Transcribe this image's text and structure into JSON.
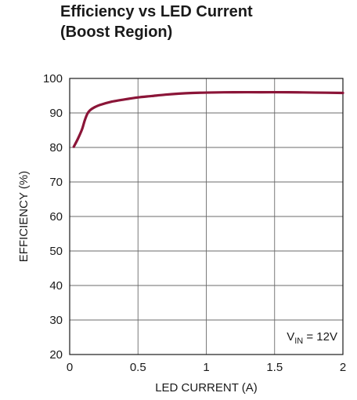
{
  "chart_data": {
    "type": "line",
    "title": [
      "Efficiency vs LED Current",
      "(Boost Region)"
    ],
    "xlabel": "LED CURRENT (A)",
    "ylabel": "EFFICIENCY (%)",
    "xlim": [
      0,
      2
    ],
    "ylim": [
      20,
      100
    ],
    "x_ticks": [
      0,
      0.5,
      1,
      1.5,
      2
    ],
    "x_tick_labels": [
      "0",
      "0.5",
      "1",
      "1.5",
      "2"
    ],
    "y_ticks": [
      20,
      30,
      40,
      50,
      60,
      70,
      80,
      90,
      100
    ],
    "y_tick_labels": [
      "20",
      "30",
      "40",
      "50",
      "60",
      "70",
      "80",
      "90",
      "100"
    ],
    "grid": true,
    "annotation": {
      "main": "V",
      "sub": "IN",
      "rest": " = 12V",
      "placement": "bottom-right"
    },
    "series": [
      {
        "color": "#8b1538",
        "x": [
          0.03,
          0.06,
          0.09,
          0.11,
          0.13,
          0.15,
          0.18,
          0.22,
          0.3,
          0.4,
          0.5,
          0.6,
          0.7,
          0.8,
          0.9,
          1.0,
          1.2,
          1.4,
          1.6,
          1.8,
          2.0
        ],
        "y": [
          80.2,
          82.5,
          85.2,
          87.8,
          89.8,
          90.8,
          91.6,
          92.3,
          93.2,
          93.9,
          94.5,
          94.9,
          95.3,
          95.6,
          95.8,
          95.9,
          96.0,
          96.0,
          96.0,
          95.9,
          95.8
        ]
      }
    ]
  }
}
